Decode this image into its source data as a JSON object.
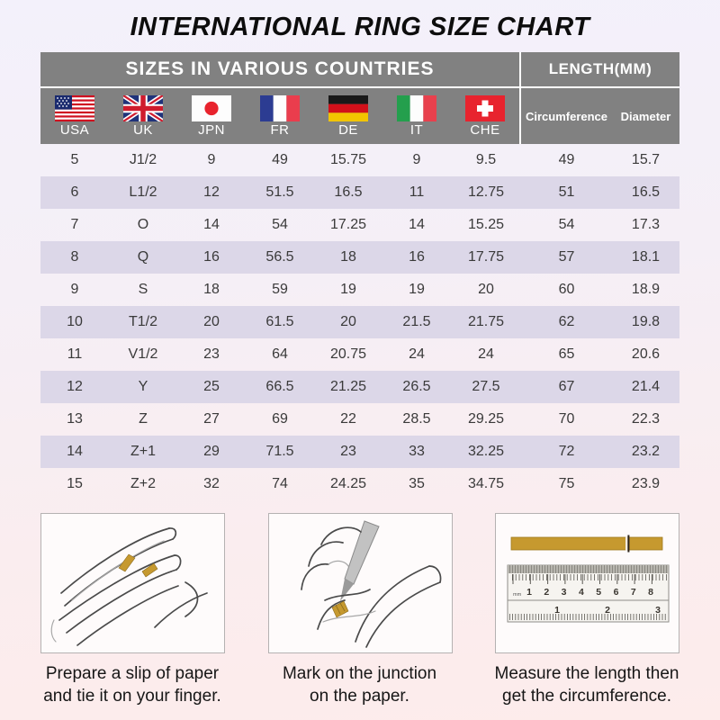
{
  "title": "INTERNATIONAL RING SIZE CHART",
  "chart_data": {
    "type": "table",
    "title": "INTERNATIONAL RING SIZE CHART",
    "group_headers": [
      "SIZES IN VARIOUS COUNTRIES",
      "LENGTH(MM)"
    ],
    "country_columns": [
      {
        "code": "USA",
        "icon": "usa-flag-icon"
      },
      {
        "code": "UK",
        "icon": "uk-flag-icon"
      },
      {
        "code": "JPN",
        "icon": "japan-flag-icon"
      },
      {
        "code": "FR",
        "icon": "france-flag-icon"
      },
      {
        "code": "DE",
        "icon": "germany-flag-icon"
      },
      {
        "code": "IT",
        "icon": "italy-flag-icon"
      },
      {
        "code": "CHE",
        "icon": "switzerland-flag-icon"
      }
    ],
    "length_columns": [
      "Circumference",
      "Diameter"
    ],
    "rows": [
      [
        "5",
        "J1/2",
        "9",
        "49",
        "15.75",
        "9",
        "9.5",
        "49",
        "15.7"
      ],
      [
        "6",
        "L1/2",
        "12",
        "51.5",
        "16.5",
        "11",
        "12.75",
        "51",
        "16.5"
      ],
      [
        "7",
        "O",
        "14",
        "54",
        "17.25",
        "14",
        "15.25",
        "54",
        "17.3"
      ],
      [
        "8",
        "Q",
        "16",
        "56.5",
        "18",
        "16",
        "17.75",
        "57",
        "18.1"
      ],
      [
        "9",
        "S",
        "18",
        "59",
        "19",
        "19",
        "20",
        "60",
        "18.9"
      ],
      [
        "10",
        "T1/2",
        "20",
        "61.5",
        "20",
        "21.5",
        "21.75",
        "62",
        "19.8"
      ],
      [
        "11",
        "V1/2",
        "23",
        "64",
        "20.75",
        "24",
        "24",
        "65",
        "20.6"
      ],
      [
        "12",
        "Y",
        "25",
        "66.5",
        "21.25",
        "26.5",
        "27.5",
        "67",
        "21.4"
      ],
      [
        "13",
        "Z",
        "27",
        "69",
        "22",
        "28.5",
        "29.25",
        "70",
        "22.3"
      ],
      [
        "14",
        "Z+1",
        "29",
        "71.5",
        "23",
        "33",
        "32.25",
        "72",
        "23.2"
      ],
      [
        "15",
        "Z+2",
        "32",
        "74",
        "24.25",
        "35",
        "34.75",
        "75",
        "23.9"
      ]
    ]
  },
  "steps": [
    {
      "icon": "hand-with-paper-strip-illustration",
      "caption_line1": "Prepare a slip of paper",
      "caption_line2": "and tie it on your finger."
    },
    {
      "icon": "pen-marking-paper-illustration",
      "caption_line1": "Mark on the junction",
      "caption_line2": "on the paper."
    },
    {
      "icon": "ruler-measuring-illustration",
      "caption_line1": "Measure the length then",
      "caption_line2": "get the circumference.",
      "ruler_numbers_top": [
        "1",
        "2",
        "3",
        "4",
        "5",
        "6",
        "7",
        "8"
      ],
      "ruler_numbers_bottom": [
        "1",
        "2",
        "3"
      ],
      "ruler_unit_label": "mm"
    }
  ],
  "colors": {
    "header_bg": "#818181",
    "header_text": "#ffffff",
    "row_stripe": "#dcd7e8",
    "page_top": "#f3f1fb",
    "page_bottom": "#fdeceb",
    "paper_strip_gold": "#c6992f",
    "card_bg": "#fefbfb",
    "card_border": "#b5b2b2",
    "table_text": "#3a3a3a",
    "title_text": "#0d0d0d"
  }
}
